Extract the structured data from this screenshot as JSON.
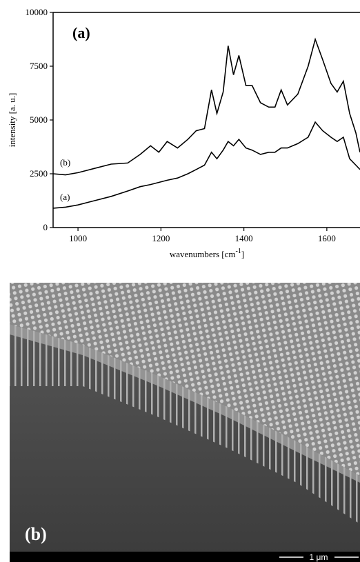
{
  "chart_data": {
    "type": "line",
    "panel_label": "(a)",
    "y_label": "intensity [a. u.]",
    "x_label": "wavenumbers [cm",
    "x_label_sup": "-1",
    "x_label_end": "]",
    "x": [
      940,
      970,
      1000,
      1040,
      1080,
      1120,
      1150,
      1175,
      1195,
      1215,
      1240,
      1265,
      1285,
      1305,
      1322,
      1335,
      1350,
      1362,
      1375,
      1388,
      1405,
      1420,
      1440,
      1460,
      1475,
      1490,
      1505,
      1530,
      1555,
      1572,
      1590,
      1610,
      1625,
      1640,
      1655,
      1670,
      1680
    ],
    "series": [
      {
        "name": "(b)",
        "color": "#000000",
        "values": [
          2500,
          2450,
          2550,
          2750,
          2950,
          3000,
          3400,
          3800,
          3500,
          4000,
          3700,
          4100,
          4500,
          4600,
          6400,
          5300,
          6300,
          8450,
          7100,
          8000,
          6600,
          6600,
          5800,
          5600,
          5600,
          6400,
          5700,
          6200,
          7500,
          8750,
          7800,
          6700,
          6300,
          6800,
          5300,
          4400,
          3500
        ]
      },
      {
        "name": "(a)",
        "color": "#000000",
        "values": [
          900,
          950,
          1050,
          1250,
          1450,
          1700,
          1900,
          2000,
          2100,
          2200,
          2300,
          2500,
          2700,
          2900,
          3500,
          3200,
          3600,
          4000,
          3800,
          4100,
          3700,
          3600,
          3400,
          3500,
          3500,
          3700,
          3700,
          3900,
          4200,
          4900,
          4500,
          4200,
          4000,
          4200,
          3200,
          2900,
          2700
        ]
      }
    ],
    "xlim": [
      940,
      1680
    ],
    "xticks": [
      1000,
      1200,
      1400,
      1600
    ],
    "ylim": [
      0,
      10000
    ],
    "yticks": [
      0,
      2500,
      5000,
      7500,
      10000
    ],
    "grid": false
  },
  "image": {
    "panel_label": "(b)",
    "scale_bar": "1 μm"
  }
}
